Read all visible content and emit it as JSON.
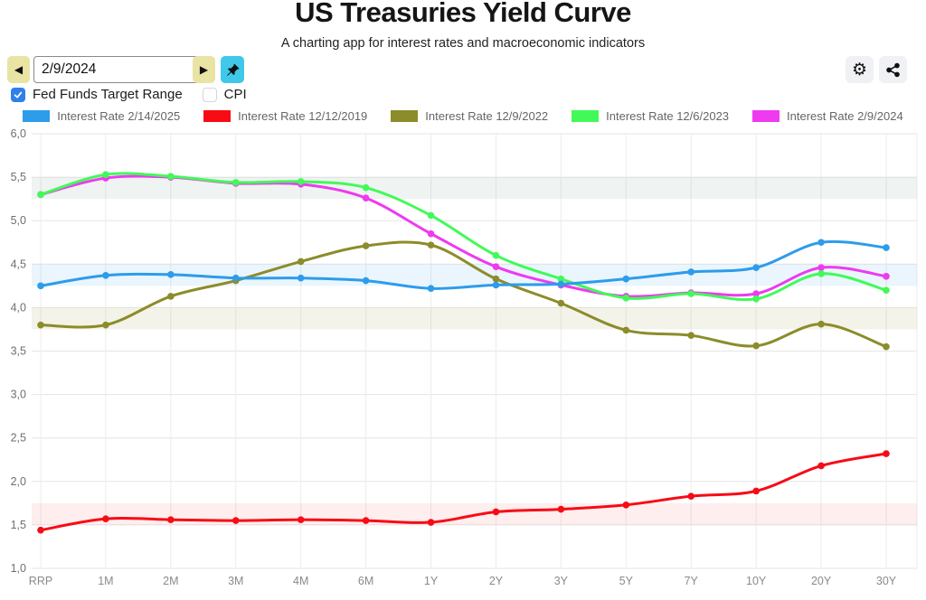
{
  "header": {
    "title": "US Treasuries Yield Curve",
    "subtitle": "A charting app for interest rates and macroeconomic indicators"
  },
  "toolbar": {
    "prev_label": "◀",
    "next_label": "▶",
    "date_value": "2/9/2024",
    "settings_icon_glyph": "⚙"
  },
  "filters": {
    "fed_funds": {
      "label": "Fed Funds Target Range",
      "checked": true
    },
    "cpi": {
      "label": "CPI",
      "checked": false
    }
  },
  "colors": {
    "nav_button_bg": "#e9e4a4",
    "pin_button_bg": "#3fc8ea",
    "checkbox_checked": "#2f80ea"
  },
  "chart_data": {
    "type": "line",
    "title": "US Treasuries Yield Curve",
    "categories": [
      "RRP",
      "1M",
      "2M",
      "3M",
      "4M",
      "6M",
      "1Y",
      "2Y",
      "3Y",
      "5Y",
      "7Y",
      "10Y",
      "20Y",
      "30Y"
    ],
    "series": [
      {
        "name": "Interest Rate 2/14/2025",
        "color": "#2d9ceb",
        "z": 5,
        "band": [
          4.25,
          4.5
        ],
        "band_opacity": 0.1,
        "values": [
          4.25,
          4.37,
          4.38,
          4.34,
          4.34,
          4.31,
          4.22,
          4.26,
          4.27,
          4.33,
          4.41,
          4.46,
          4.75,
          4.69
        ]
      },
      {
        "name": "Interest Rate 12/12/2019",
        "color": "#f70b15",
        "z": 1,
        "band": [
          1.5,
          1.75
        ],
        "band_opacity": 0.07,
        "values": [
          1.44,
          1.57,
          1.56,
          1.55,
          1.56,
          1.55,
          1.53,
          1.65,
          1.68,
          1.73,
          1.83,
          1.89,
          2.18,
          2.32
        ]
      },
      {
        "name": "Interest Rate 12/9/2022",
        "color": "#8c8c2a",
        "z": 2,
        "band": [
          3.75,
          4.0
        ],
        "band_opacity": 0.1,
        "values": [
          3.8,
          3.8,
          4.13,
          4.31,
          4.53,
          4.71,
          4.72,
          4.33,
          4.05,
          3.74,
          3.68,
          3.56,
          3.81,
          3.55
        ]
      },
      {
        "name": "Interest Rate 12/6/2023",
        "color": "#41fa58",
        "z": 4,
        "band": [
          5.25,
          5.5
        ],
        "band_opacity": 0.08,
        "values": [
          5.3,
          5.53,
          5.51,
          5.44,
          5.45,
          5.38,
          5.06,
          4.6,
          4.33,
          4.11,
          4.16,
          4.1,
          4.39,
          4.2
        ]
      },
      {
        "name": "Interest Rate 2/9/2024",
        "color": "#ee3af0",
        "z": 3,
        "band": [
          5.25,
          5.5
        ],
        "band_opacity": 0.06,
        "values": [
          5.3,
          5.49,
          5.5,
          5.43,
          5.42,
          5.26,
          4.85,
          4.47,
          4.26,
          4.13,
          4.17,
          4.16,
          4.46,
          4.36
        ]
      }
    ],
    "ylim": [
      1.0,
      6.0
    ],
    "ytick_step": 0.5,
    "ytick_labels": [
      "6,0",
      "5,5",
      "5,0",
      "4,5",
      "4,0",
      "3,5",
      "3,0",
      "2,5",
      "2,0",
      "1,5",
      "1,0"
    ],
    "grid": true,
    "legend_position": "top",
    "band_meaning": "Fed Funds Target Range"
  }
}
